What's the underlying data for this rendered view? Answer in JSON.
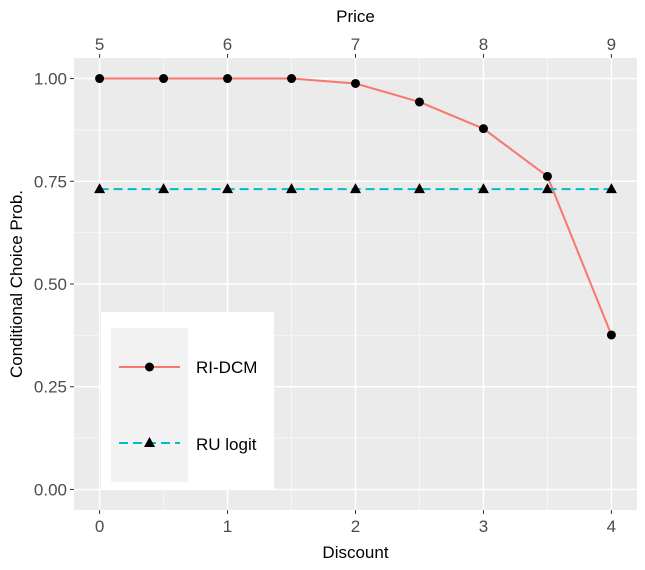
{
  "chart_data": {
    "type": "line",
    "xlabel": "Discount",
    "ylabel": "Conditional Choice Prob.",
    "top_axis_title": "Price",
    "x": [
      0,
      0.5,
      1,
      1.5,
      2,
      2.5,
      3,
      3.5,
      4
    ],
    "x_ticks": [
      0,
      1,
      2,
      3,
      4
    ],
    "x_tick_labels": [
      "0",
      "1",
      "2",
      "3",
      "4"
    ],
    "top_ticks": [
      0,
      1,
      2,
      3,
      4
    ],
    "top_tick_labels": [
      "5",
      "6",
      "7",
      "8",
      "9"
    ],
    "y_ticks": [
      0,
      0.25,
      0.5,
      0.75,
      1.0
    ],
    "y_tick_labels": [
      "0.00",
      "0.25",
      "0.50",
      "0.75",
      "1.00"
    ],
    "xlim": [
      -0.2,
      4.2
    ],
    "ylim": [
      -0.05,
      1.05
    ],
    "grid": true,
    "legend_position": "bottom-left",
    "series": [
      {
        "name": "RI-DCM",
        "values": [
          1.0,
          1.0,
          1.0,
          1.0,
          0.988,
          0.943,
          0.878,
          0.762,
          0.376
        ],
        "color": "#F8766D",
        "line_style": "solid",
        "marker": "circle"
      },
      {
        "name": "RU logit",
        "values": [
          0.731,
          0.731,
          0.731,
          0.731,
          0.731,
          0.731,
          0.731,
          0.731,
          0.731
        ],
        "color": "#00BFC4",
        "line_style": "dashed",
        "marker": "triangle"
      }
    ]
  }
}
